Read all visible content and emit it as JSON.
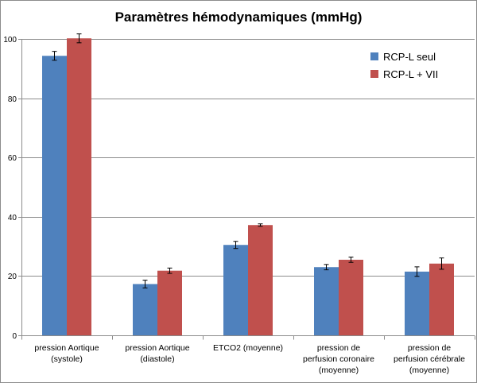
{
  "chart_data": {
    "type": "bar",
    "title": "Paramètres hémodynamiques (mmHg)",
    "xlabel": "",
    "ylabel": "",
    "ylim": [
      0,
      100
    ],
    "yticks": [
      0,
      20,
      40,
      60,
      80,
      100
    ],
    "grid": true,
    "legend_position": "top-right",
    "categories": [
      [
        "pression Aortique",
        "(systole)"
      ],
      [
        "pression Aortique",
        "(diastole)"
      ],
      [
        "ETCO2 (moyenne)"
      ],
      [
        "pression de",
        "perfusion coronaire",
        "(moyenne)"
      ],
      [
        "pression de",
        "perfusion cérébrale",
        "(moyenne)"
      ]
    ],
    "series": [
      {
        "name": "RCP-L seul",
        "color": "#4F81BD",
        "values": [
          94.3,
          17.3,
          30.5,
          23.0,
          21.5
        ],
        "errors": [
          1.5,
          1.3,
          1.2,
          0.9,
          1.6
        ]
      },
      {
        "name": "RCP-L + VII",
        "color": "#C0504D",
        "values": [
          100.2,
          21.8,
          37.2,
          25.5,
          24.2
        ],
        "errors": [
          1.5,
          0.9,
          0.4,
          0.9,
          1.9
        ]
      }
    ]
  }
}
